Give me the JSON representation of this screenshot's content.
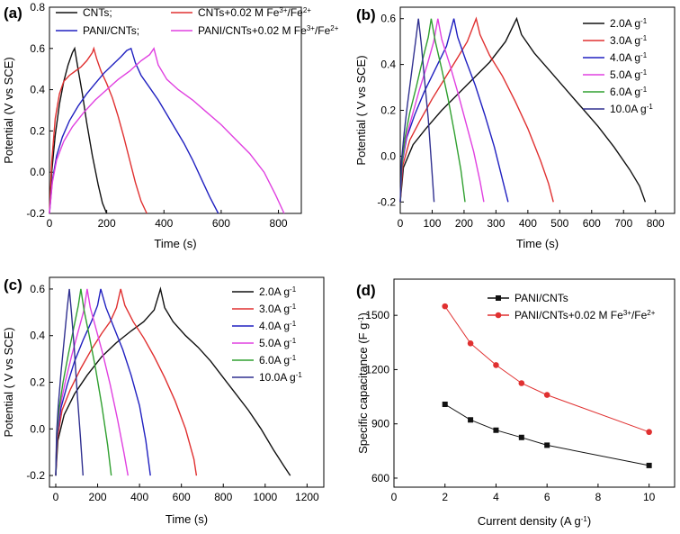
{
  "colors": {
    "black": "#111111",
    "red": "#e03030",
    "blue": "#2020c0",
    "magenta": "#e040e0",
    "green": "#30a030",
    "navy": "#303090",
    "d_red": "#e03030"
  },
  "chart_data": [
    {
      "id": "a",
      "type": "line",
      "panel_label": "(a)",
      "xlabel": "Time (s)",
      "ylabel": "Potential (V vs SCE)",
      "xlim": [
        0,
        880
      ],
      "ylim": [
        -0.2,
        0.8
      ],
      "xticks": [
        0,
        200,
        400,
        600,
        800
      ],
      "yticks": [
        -0.2,
        0.0,
        0.2,
        0.4,
        0.6,
        0.8
      ],
      "xtick_labels": [
        "0",
        "200",
        "400",
        "600",
        "800"
      ],
      "ytick_labels": [
        "-0.2",
        "0.0",
        "0.2",
        "0.4",
        "0.6",
        "0.8"
      ],
      "legend_cols": 2,
      "series": [
        {
          "name": "CNTs;",
          "color": "black",
          "x": [
            0,
            8,
            20,
            35,
            50,
            65,
            80,
            88,
            100,
            115,
            130,
            150,
            170,
            185,
            200
          ],
          "y": [
            -0.2,
            0.0,
            0.18,
            0.33,
            0.44,
            0.52,
            0.58,
            0.6,
            0.5,
            0.38,
            0.24,
            0.08,
            -0.06,
            -0.15,
            -0.2
          ]
        },
        {
          "name": "CNTs+0.02 M Fe³⁺/Fe²⁺",
          "color": "red",
          "x": [
            0,
            8,
            20,
            35,
            50,
            70,
            90,
            110,
            130,
            150,
            155,
            165,
            180,
            200,
            220,
            240,
            260,
            280,
            300,
            320,
            340
          ],
          "y": [
            -0.2,
            0.05,
            0.26,
            0.38,
            0.44,
            0.47,
            0.49,
            0.51,
            0.54,
            0.58,
            0.6,
            0.55,
            0.49,
            0.43,
            0.36,
            0.27,
            0.17,
            0.06,
            -0.05,
            -0.14,
            -0.2
          ]
        },
        {
          "name": "PANI/CNTs;",
          "color": "blue",
          "x": [
            0,
            10,
            25,
            45,
            70,
            100,
            130,
            160,
            190,
            220,
            250,
            270,
            285,
            300,
            320,
            350,
            380,
            410,
            440,
            470,
            500,
            530,
            560,
            590
          ],
          "y": [
            -0.2,
            -0.04,
            0.08,
            0.17,
            0.25,
            0.32,
            0.38,
            0.43,
            0.48,
            0.52,
            0.56,
            0.59,
            0.6,
            0.53,
            0.47,
            0.41,
            0.35,
            0.28,
            0.21,
            0.14,
            0.06,
            -0.03,
            -0.12,
            -0.2
          ]
        },
        {
          "name": "PANI/CNTs+0.02 M Fe³⁺/Fe²⁺",
          "color": "magenta",
          "x": [
            0,
            10,
            25,
            50,
            80,
            120,
            160,
            200,
            240,
            280,
            320,
            350,
            365,
            380,
            410,
            450,
            500,
            550,
            600,
            650,
            700,
            750,
            790,
            820
          ],
          "y": [
            -0.2,
            -0.05,
            0.06,
            0.15,
            0.22,
            0.29,
            0.35,
            0.4,
            0.45,
            0.49,
            0.54,
            0.57,
            0.6,
            0.52,
            0.45,
            0.4,
            0.35,
            0.29,
            0.23,
            0.16,
            0.09,
            0.0,
            -0.11,
            -0.2
          ]
        }
      ]
    },
    {
      "id": "b",
      "type": "line",
      "panel_label": "(b)",
      "xlabel": "Time (s)",
      "ylabel": "Potential ( V vs SCE)",
      "xlim": [
        0,
        860
      ],
      "ylim": [
        -0.25,
        0.65
      ],
      "xticks": [
        0,
        100,
        200,
        300,
        400,
        500,
        600,
        700,
        800
      ],
      "yticks": [
        -0.2,
        0.0,
        0.2,
        0.4,
        0.6
      ],
      "xtick_labels": [
        "0",
        "100",
        "200",
        "300",
        "400",
        "500",
        "600",
        "700",
        "800"
      ],
      "ytick_labels": [
        "-0.2",
        "0.0",
        "0.2",
        "0.4",
        "0.6"
      ],
      "legend_cols": 1,
      "series": [
        {
          "name": "2.0A g⁻¹",
          "color": "black",
          "x": [
            0,
            10,
            40,
            80,
            130,
            180,
            230,
            280,
            330,
            365,
            380,
            420,
            470,
            520,
            570,
            620,
            670,
            720,
            750,
            768
          ],
          "y": [
            -0.2,
            -0.05,
            0.05,
            0.12,
            0.2,
            0.27,
            0.34,
            0.41,
            0.5,
            0.6,
            0.53,
            0.45,
            0.37,
            0.29,
            0.21,
            0.13,
            0.04,
            -0.06,
            -0.13,
            -0.2
          ]
        },
        {
          "name": "3.0A g⁻¹",
          "color": "red",
          "x": [
            0,
            8,
            30,
            60,
            100,
            140,
            180,
            210,
            238,
            250,
            280,
            320,
            360,
            400,
            440,
            465,
            480
          ],
          "y": [
            -0.2,
            -0.04,
            0.07,
            0.15,
            0.25,
            0.34,
            0.43,
            0.5,
            0.6,
            0.53,
            0.44,
            0.35,
            0.24,
            0.12,
            -0.02,
            -0.12,
            -0.2
          ]
        },
        {
          "name": "4.0A g⁻¹",
          "color": "blue",
          "x": [
            0,
            6,
            20,
            45,
            75,
            110,
            145,
            168,
            180,
            205,
            235,
            265,
            295,
            320,
            338
          ],
          "y": [
            -0.2,
            -0.03,
            0.08,
            0.18,
            0.28,
            0.38,
            0.48,
            0.6,
            0.52,
            0.42,
            0.31,
            0.18,
            0.04,
            -0.1,
            -0.2
          ]
        },
        {
          "name": "5.0A g⁻¹",
          "color": "magenta",
          "x": [
            0,
            5,
            18,
            38,
            60,
            85,
            105,
            118,
            130,
            155,
            180,
            205,
            230,
            250,
            262
          ],
          "y": [
            -0.2,
            -0.03,
            0.08,
            0.18,
            0.29,
            0.4,
            0.5,
            0.6,
            0.51,
            0.4,
            0.28,
            0.15,
            0.02,
            -0.11,
            -0.2
          ]
        },
        {
          "name": "6.0A g⁻¹",
          "color": "green",
          "x": [
            0,
            5,
            15,
            30,
            50,
            70,
            88,
            97,
            110,
            130,
            150,
            170,
            190,
            203
          ],
          "y": [
            -0.2,
            -0.03,
            0.08,
            0.19,
            0.3,
            0.42,
            0.52,
            0.6,
            0.5,
            0.38,
            0.25,
            0.1,
            -0.06,
            -0.2
          ]
        },
        {
          "name": "10.0A g⁻¹",
          "color": "navy",
          "x": [
            0,
            4,
            12,
            22,
            35,
            48,
            57,
            65,
            75,
            88,
            98,
            106
          ],
          "y": [
            -0.2,
            -0.02,
            0.1,
            0.22,
            0.36,
            0.5,
            0.6,
            0.5,
            0.35,
            0.16,
            -0.04,
            -0.2
          ]
        }
      ]
    },
    {
      "id": "c",
      "type": "line",
      "panel_label": "(c)",
      "xlabel": "Time (s)",
      "ylabel": "Potential ( V vs SCE)",
      "xlim": [
        -30,
        1280
      ],
      "ylim": [
        -0.25,
        0.65
      ],
      "xticks": [
        0,
        200,
        400,
        600,
        800,
        1000,
        1200
      ],
      "yticks": [
        -0.2,
        0.0,
        0.2,
        0.4,
        0.6
      ],
      "xtick_labels": [
        "0",
        "200",
        "400",
        "600",
        "800",
        "1000",
        "1200"
      ],
      "ytick_labels": [
        "-0.2",
        "0.0",
        "0.2",
        "0.4",
        "0.6"
      ],
      "legend_cols": 1,
      "series": [
        {
          "name": "2.0A g⁻¹",
          "color": "black",
          "x": [
            0,
            10,
            40,
            90,
            150,
            220,
            290,
            360,
            420,
            470,
            500,
            520,
            560,
            620,
            680,
            740,
            800,
            860,
            920,
            980,
            1040,
            1090,
            1120
          ],
          "y": [
            -0.2,
            -0.05,
            0.06,
            0.15,
            0.23,
            0.31,
            0.37,
            0.42,
            0.46,
            0.51,
            0.6,
            0.52,
            0.46,
            0.4,
            0.35,
            0.29,
            0.22,
            0.15,
            0.08,
            0.0,
            -0.09,
            -0.16,
            -0.2
          ]
        },
        {
          "name": "3.0A g⁻¹",
          "color": "red",
          "x": [
            0,
            8,
            30,
            70,
            120,
            170,
            220,
            260,
            290,
            310,
            330,
            370,
            420,
            470,
            520,
            570,
            620,
            660,
            672
          ],
          "y": [
            -0.2,
            -0.04,
            0.08,
            0.17,
            0.26,
            0.34,
            0.41,
            0.46,
            0.52,
            0.6,
            0.53,
            0.46,
            0.39,
            0.31,
            0.22,
            0.12,
            0.0,
            -0.13,
            -0.2
          ]
        },
        {
          "name": "4.0A g⁻¹",
          "color": "blue",
          "x": [
            0,
            6,
            25,
            55,
            90,
            130,
            170,
            200,
            215,
            240,
            280,
            320,
            360,
            400,
            430,
            452
          ],
          "y": [
            -0.2,
            -0.03,
            0.09,
            0.19,
            0.29,
            0.38,
            0.46,
            0.53,
            0.6,
            0.52,
            0.43,
            0.34,
            0.23,
            0.1,
            -0.05,
            -0.2
          ]
        },
        {
          "name": "5.0A g⁻¹",
          "color": "magenta",
          "x": [
            0,
            5,
            20,
            45,
            75,
            105,
            135,
            150,
            165,
            195,
            225,
            260,
            295,
            325,
            345
          ],
          "y": [
            -0.2,
            -0.03,
            0.09,
            0.2,
            0.31,
            0.41,
            0.51,
            0.6,
            0.52,
            0.42,
            0.32,
            0.19,
            0.04,
            -0.1,
            -0.2
          ]
        },
        {
          "name": "6.0A g⁻¹",
          "color": "green",
          "x": [
            0,
            5,
            15,
            35,
            60,
            85,
            108,
            120,
            135,
            160,
            190,
            220,
            248,
            265
          ],
          "y": [
            -0.2,
            -0.03,
            0.08,
            0.2,
            0.32,
            0.43,
            0.53,
            0.6,
            0.51,
            0.4,
            0.26,
            0.1,
            -0.07,
            -0.2
          ]
        },
        {
          "name": "10.0A g⁻¹",
          "color": "navy",
          "x": [
            0,
            4,
            12,
            25,
            40,
            55,
            65,
            75,
            88,
            102,
            118,
            130
          ],
          "y": [
            -0.2,
            -0.02,
            0.1,
            0.24,
            0.38,
            0.52,
            0.6,
            0.5,
            0.35,
            0.16,
            -0.04,
            -0.2
          ]
        }
      ]
    },
    {
      "id": "d",
      "type": "scatter",
      "panel_label": "(d)",
      "xlabel": "Current density (A g⁻¹)",
      "ylabel": "Specific capacitance (F g⁻¹)",
      "xlim": [
        0,
        11
      ],
      "ylim": [
        550,
        1700
      ],
      "xticks": [
        0,
        2,
        4,
        6,
        8,
        10
      ],
      "yticks": [
        600,
        900,
        1200,
        1500
      ],
      "xtick_labels": [
        "0",
        "2",
        "4",
        "6",
        "8",
        "10"
      ],
      "ytick_labels": [
        "600",
        "900",
        "1200",
        "1500"
      ],
      "legend_cols": 1,
      "series": [
        {
          "name": "PANI/CNTs",
          "color": "black",
          "marker": "square",
          "x": [
            2,
            3,
            4,
            5,
            6,
            10
          ],
          "y": [
            1008,
            922,
            865,
            825,
            782,
            670
          ]
        },
        {
          "name": "PANI/CNTs+0.02 M Fe³⁺/Fe²⁺",
          "color": "d_red",
          "marker": "circle",
          "x": [
            2,
            3,
            4,
            5,
            6,
            10
          ],
          "y": [
            1550,
            1345,
            1225,
            1125,
            1060,
            855
          ]
        }
      ]
    }
  ]
}
